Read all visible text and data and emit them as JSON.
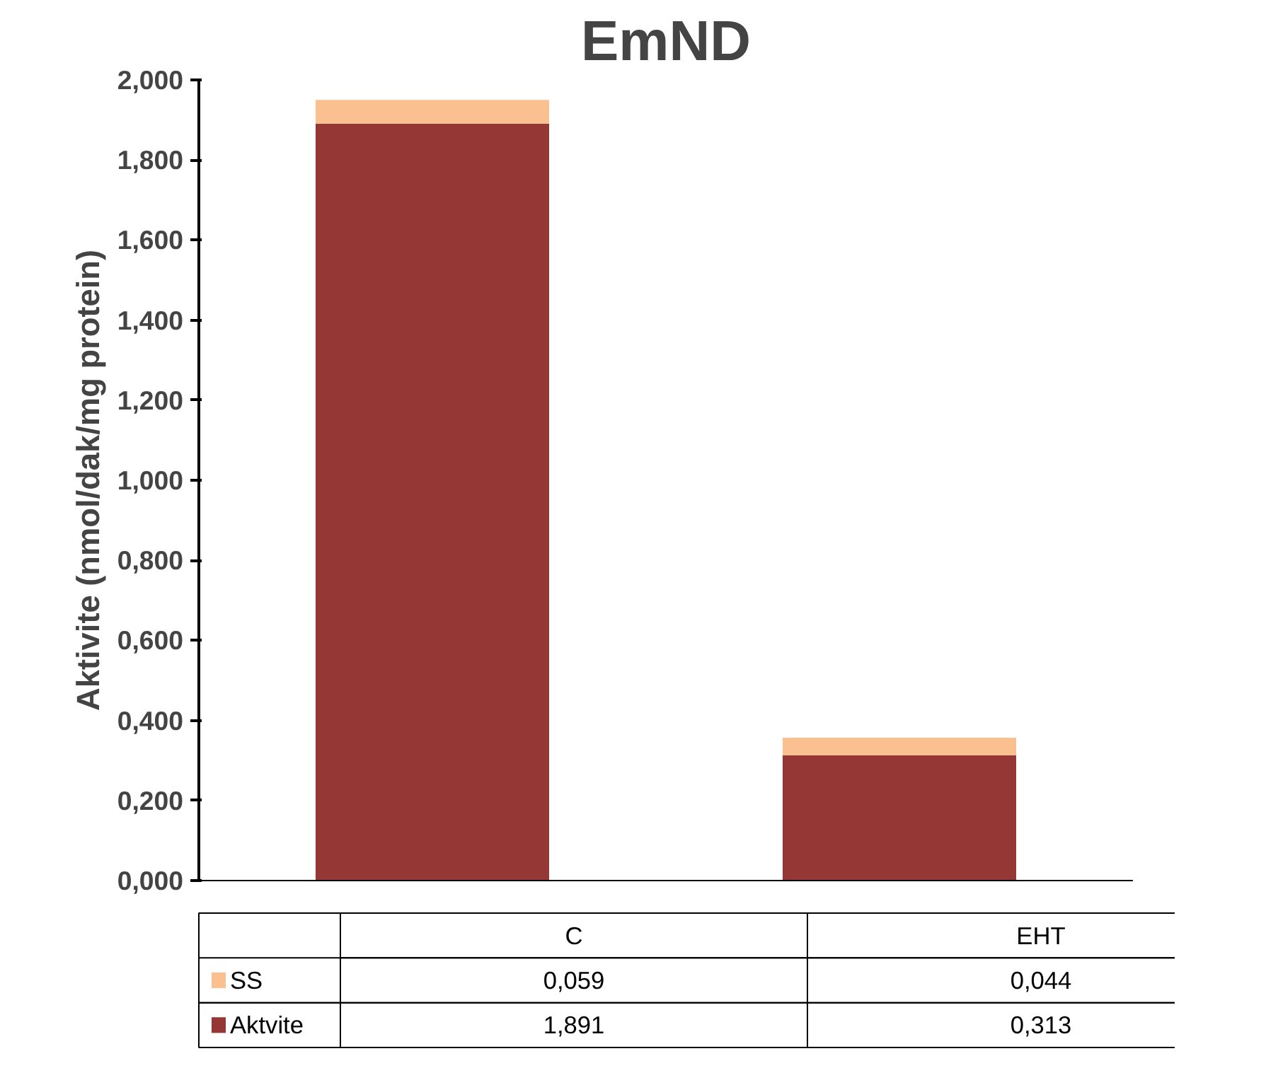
{
  "chart_data": {
    "type": "bar",
    "title": "EmND",
    "ylabel": "Aktivite (nmol/dak/mg protein)",
    "categories": [
      "C",
      "EHT"
    ],
    "stacked": true,
    "legend": "bottom",
    "grid": false,
    "ylim": [
      0,
      2
    ],
    "yticks": [
      {
        "value": 0,
        "label": "0,000"
      },
      {
        "value": 0.2,
        "label": "0,200"
      },
      {
        "value": 0.4,
        "label": "0,400"
      },
      {
        "value": 0.6,
        "label": "0,600"
      },
      {
        "value": 0.8,
        "label": "0,800"
      },
      {
        "value": 1.0,
        "label": "1,000"
      },
      {
        "value": 1.2,
        "label": "1,200"
      },
      {
        "value": 1.4,
        "label": "1,400"
      },
      {
        "value": 1.6,
        "label": "1,600"
      },
      {
        "value": 1.8,
        "label": "1,800"
      },
      {
        "value": 2.0,
        "label": "2,000"
      }
    ],
    "series": [
      {
        "name": "Aktvite",
        "color": "#953735",
        "values": [
          1.891,
          0.313
        ],
        "value_labels": [
          "1,891",
          "0,313"
        ]
      },
      {
        "name": "SS",
        "color": "#fac090",
        "values": [
          0.059,
          0.044
        ],
        "value_labels": [
          "0,059",
          "0,044"
        ]
      }
    ]
  }
}
